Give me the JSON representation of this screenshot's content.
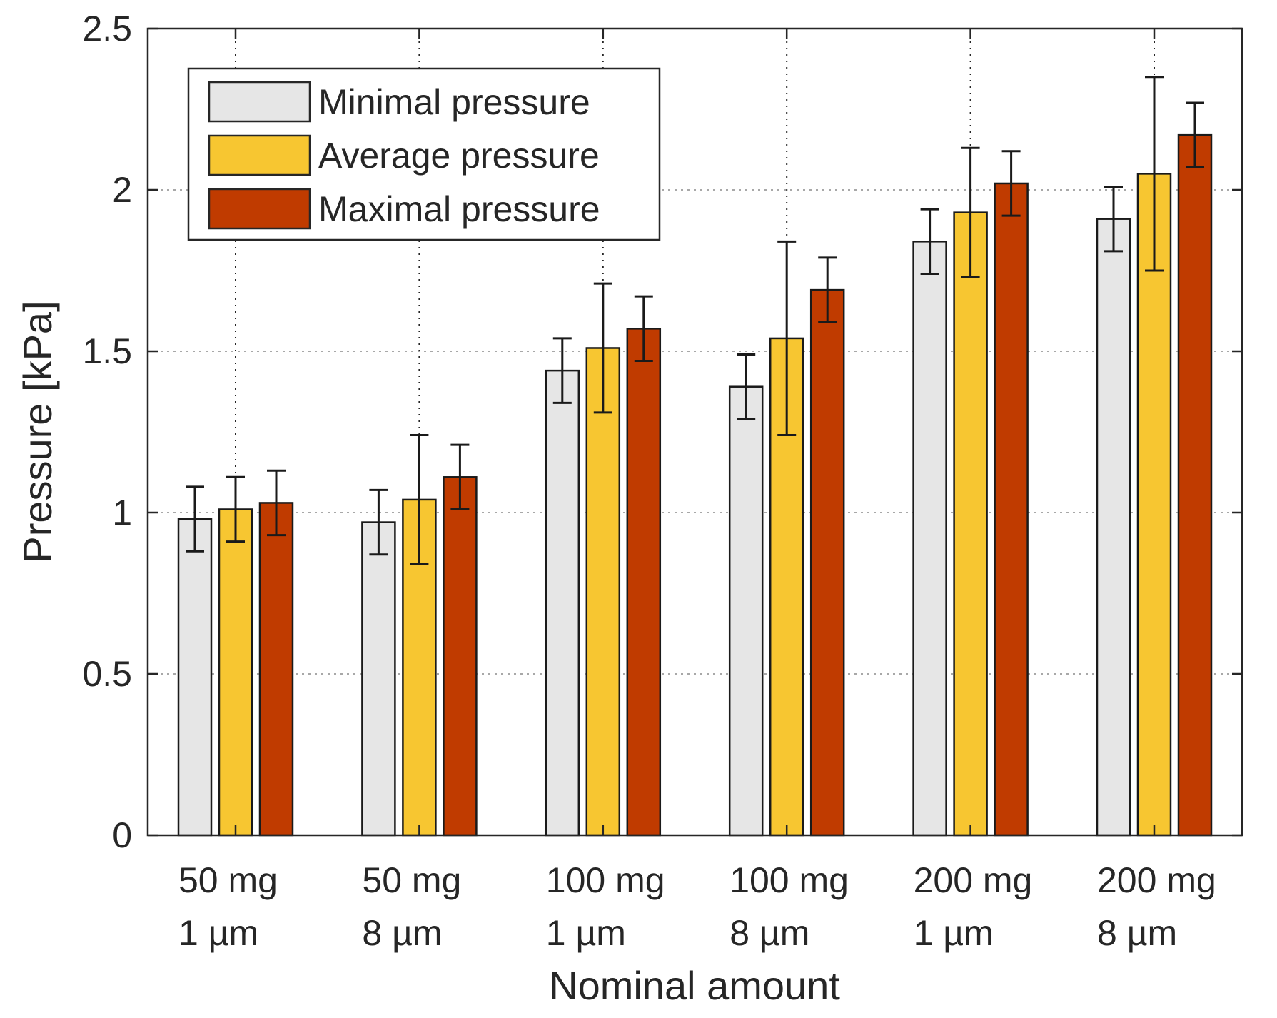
{
  "chart_data": {
    "type": "bar",
    "title": "",
    "xlabel": "Nominal amount",
    "ylabel": "Pressure [kPa]",
    "ylim": [
      0,
      2.5
    ],
    "yticks": [
      "0",
      "0.5",
      "1",
      "1.5",
      "2",
      "2.5"
    ],
    "ytick_values": [
      0,
      0.5,
      1,
      1.5,
      2,
      2.5
    ],
    "grid": true,
    "legend_position": "top-left",
    "categories": [
      {
        "line1": "50 mg",
        "line2": "1 µm"
      },
      {
        "line1": "50 mg",
        "line2": "8 µm"
      },
      {
        "line1": "100 mg",
        "line2": "1 µm"
      },
      {
        "line1": "100 mg",
        "line2": "8 µm"
      },
      {
        "line1": "200 mg",
        "line2": "1 µm"
      },
      {
        "line1": "200 mg",
        "line2": "8 µm"
      }
    ],
    "series": [
      {
        "name": "Minimal pressure",
        "color": "#e6e6e6",
        "values": [
          0.98,
          0.97,
          1.44,
          1.39,
          1.84,
          1.91
        ],
        "errors": [
          0.1,
          0.1,
          0.1,
          0.1,
          0.1,
          0.1
        ]
      },
      {
        "name": "Average pressure",
        "color": "#f7c631",
        "values": [
          1.01,
          1.04,
          1.51,
          1.54,
          1.93,
          2.05
        ],
        "errors": [
          0.1,
          0.2,
          0.2,
          0.3,
          0.2,
          0.3
        ]
      },
      {
        "name": "Maximal pressure",
        "color": "#c03b00",
        "values": [
          1.03,
          1.11,
          1.57,
          1.69,
          2.02,
          2.17
        ],
        "errors": [
          0.1,
          0.1,
          0.1,
          0.1,
          0.1,
          0.1
        ]
      }
    ]
  }
}
